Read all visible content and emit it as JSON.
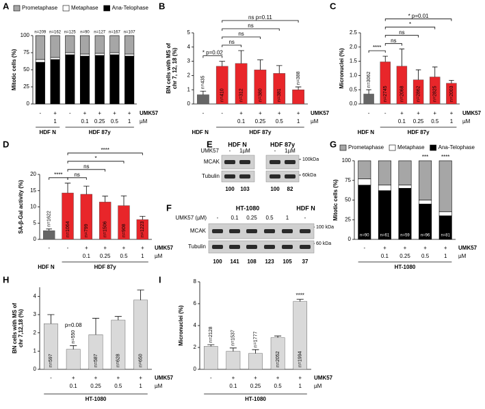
{
  "chart_data": [
    {
      "panel": "A",
      "type": "stacked_bar",
      "ylabel": [
        "Mitotic cells (%)"
      ],
      "ylim": [
        0,
        100
      ],
      "yticks": [
        0,
        25,
        50,
        75,
        100
      ],
      "series": [
        {
          "name": "Ana-Telophase",
          "color": "#000000",
          "values": [
            61,
            65,
            72,
            70,
            71,
            72,
            70
          ]
        },
        {
          "name": "Metaphase",
          "color": "#ffffff",
          "values": [
            4,
            3,
            3,
            3,
            3,
            3,
            3
          ]
        },
        {
          "name": "Prometaphase",
          "color": "#a6a6a6",
          "values": [
            35,
            32,
            25,
            27,
            26,
            25,
            27
          ]
        }
      ],
      "n_labels": [
        "n=209",
        "n=162",
        "n=125",
        "n=90",
        "n=127",
        "n=167",
        "n=107"
      ],
      "treatment": {
        "name": "UMK57",
        "unit": "µM",
        "signs": [
          "-",
          "+",
          "-",
          "+",
          "+",
          "+",
          "+"
        ],
        "doses": [
          null,
          "1",
          null,
          "0.1",
          "0.25",
          "0.5",
          "1"
        ]
      },
      "groups": [
        "HDF N",
        "HDF 87y"
      ]
    },
    {
      "panel": "B",
      "type": "bar",
      "ylabel": [
        "BN cells with MS of",
        "chr 7, 12, 18 (%)"
      ],
      "ylim": [
        0,
        5
      ],
      "yticks": [
        0,
        1,
        2,
        3,
        4,
        5
      ],
      "series": [
        {
          "colors": [
            "#666666",
            "#e8262a",
            "#e8262a",
            "#e8262a",
            "#e8262a",
            "#e8262a"
          ],
          "values": [
            0.65,
            2.65,
            2.85,
            2.4,
            2.15,
            1.0
          ],
          "errors": [
            0.25,
            0.35,
            0.9,
            0.7,
            0.55,
            0.2
          ]
        }
      ],
      "n_labels": [
        "n=435",
        "n=410",
        "n=312",
        "n=380",
        "n=381",
        "n=388"
      ],
      "comparisons": [
        {
          "bars": [
            0,
            1
          ],
          "label": "* p=0.02"
        },
        {
          "bars": [
            1,
            2
          ],
          "label": "ns"
        },
        {
          "bars": [
            1,
            3
          ],
          "label": "ns"
        },
        {
          "bars": [
            1,
            4
          ],
          "label": "ns"
        },
        {
          "bars": [
            1,
            5
          ],
          "label": "ns p=0.11"
        }
      ],
      "treatment": {
        "name": "UMK57",
        "unit": "µM",
        "signs": [
          "-",
          "-",
          "+",
          "+",
          "+",
          "+"
        ],
        "doses": [
          null,
          null,
          "0.1",
          "0.25",
          "0.5",
          "1"
        ]
      },
      "groups": [
        "HDF N",
        "HDF 87y"
      ]
    },
    {
      "panel": "C",
      "type": "bar",
      "ylabel": [
        "Micronuclei (%)"
      ],
      "ylim": [
        0,
        2.5
      ],
      "yticks": [
        {
          "value": 0,
          "label": "0.0"
        },
        {
          "value": 0.5,
          "label": "0.5"
        },
        {
          "value": 1,
          "label": "1.0"
        },
        {
          "value": 1.5,
          "label": "1.5"
        },
        {
          "value": 2,
          "label": "2.0"
        },
        {
          "value": 2.5,
          "label": "2.5"
        }
      ],
      "series": [
        {
          "colors": [
            "#666666",
            "#e8262a",
            "#e8262a",
            "#e8262a",
            "#e8262a",
            "#e8262a"
          ],
          "values": [
            0.35,
            1.48,
            1.33,
            0.85,
            0.95,
            0.73
          ],
          "errors": [
            0.15,
            0.2,
            0.6,
            0.35,
            0.35,
            0.1
          ]
        }
      ],
      "n_labels": [
        "n=3062",
        "n=2745",
        "n=2068",
        "n=2862",
        "n=2825",
        "n=2003"
      ],
      "comparisons": [
        {
          "bars": [
            0,
            1
          ],
          "label": "****"
        },
        {
          "bars": [
            1,
            2
          ],
          "label": "ns"
        },
        {
          "bars": [
            1,
            3
          ],
          "label": "ns"
        },
        {
          "bars": [
            1,
            4
          ],
          "label": "*"
        },
        {
          "bars": [
            1,
            5
          ],
          "label": "* p=0.01"
        }
      ],
      "treatment": {
        "name": "UMK57",
        "unit": "µM",
        "signs": [
          "-",
          "-",
          "+",
          "+",
          "+",
          "+"
        ],
        "doses": [
          null,
          null,
          "0.1",
          "0.25",
          "0.5",
          "1"
        ]
      },
      "groups": [
        "HDF N",
        "HDF 87y"
      ]
    },
    {
      "panel": "D",
      "type": "bar",
      "ylabel": [
        "SA-β-Gal activity (%)"
      ],
      "ylim": [
        0,
        20
      ],
      "yticks": [
        0,
        5,
        10,
        15,
        20
      ],
      "series": [
        {
          "colors": [
            "#666666",
            "#e8262a",
            "#e8262a",
            "#e8262a",
            "#e8262a",
            "#e8262a"
          ],
          "values": [
            2.7,
            14.3,
            13.9,
            11.5,
            10.4,
            6.1
          ],
          "errors": [
            0.5,
            3,
            2.5,
            1.8,
            3,
            1
          ]
        }
      ],
      "n_labels": [
        "n=1622",
        "n=1064",
        "n=799",
        "n=1506",
        "n=908",
        "n=1223"
      ],
      "comparisons": [
        {
          "bars": [
            0,
            1
          ],
          "label": "****"
        },
        {
          "bars": [
            1,
            2
          ],
          "label": "ns"
        },
        {
          "bars": [
            1,
            3
          ],
          "label": "ns"
        },
        {
          "bars": [
            1,
            4
          ],
          "label": "*"
        },
        {
          "bars": [
            1,
            5
          ],
          "label": "****"
        }
      ],
      "treatment": {
        "name": "UMK57",
        "unit": "µM",
        "signs": [
          "-",
          "-",
          "+",
          "+",
          "+",
          "+"
        ],
        "doses": [
          null,
          null,
          "0.1",
          "0.25",
          "0.5",
          "1"
        ]
      },
      "groups": [
        "HDF N",
        "HDF 87y"
      ]
    },
    {
      "panel": "G",
      "type": "stacked_bar",
      "ylabel": [
        "Mitotic cells (%)"
      ],
      "ylim": [
        0,
        100
      ],
      "yticks": [
        0,
        25,
        50,
        75,
        100
      ],
      "series": [
        {
          "name": "Ana-Telophase",
          "color": "#000000",
          "values": [
            69,
            62,
            65,
            45,
            30
          ]
        },
        {
          "name": "Metaphase",
          "color": "#ffffff",
          "values": [
            8,
            7,
            4,
            5,
            5
          ]
        },
        {
          "name": "Prometaphase",
          "color": "#a6a6a6",
          "values": [
            23,
            31,
            31,
            50,
            65
          ]
        }
      ],
      "n_labels": [
        "n=90",
        "n=61",
        "n=59",
        "n=96",
        "n=81"
      ],
      "annotations": [
        {
          "bar": 3,
          "label": "***"
        },
        {
          "bar": 4,
          "label": "****"
        }
      ],
      "treatment": {
        "name": "UMK57",
        "unit": "µM",
        "signs": [
          "-",
          "+",
          "+",
          "+",
          "+"
        ],
        "doses": [
          null,
          "0.1",
          "0.25",
          "0.5",
          "1"
        ]
      },
      "groups": [
        "HT-1080"
      ]
    },
    {
      "panel": "H",
      "type": "bar",
      "ylabel": [
        "BN cells with MS of",
        "chr 7,12,18 (%)"
      ],
      "ylim": [
        0,
        4.5
      ],
      "yticks": [
        0,
        1,
        2,
        3,
        4
      ],
      "series": [
        {
          "colors": [
            "#d9d9d9",
            "#d9d9d9",
            "#d9d9d9",
            "#d9d9d9",
            "#d9d9d9"
          ],
          "values": [
            2.5,
            1.1,
            1.9,
            2.7,
            3.8
          ],
          "errors": [
            0.5,
            0.2,
            0.9,
            0.2,
            0.55
          ]
        }
      ],
      "n_labels": [
        "n=597",
        "n=550",
        "n=587",
        "n=628",
        "n=650"
      ],
      "annotations": [
        {
          "bar": 1,
          "label": "p=0.08"
        }
      ],
      "treatment": {
        "name": "UMK57",
        "unit": "µM",
        "signs": [
          "-",
          "+",
          "+",
          "+",
          "+"
        ],
        "doses": [
          null,
          "0.1",
          "0.25",
          "0.5",
          "1"
        ]
      },
      "groups": [
        "HT-1080"
      ]
    },
    {
      "panel": "I",
      "type": "bar",
      "ylabel": [
        "Micronuclei (%)"
      ],
      "ylim": [
        0,
        8
      ],
      "yticks": [
        0,
        2,
        4,
        6,
        8
      ],
      "series": [
        {
          "colors": [
            "#d9d9d9",
            "#d9d9d9",
            "#d9d9d9",
            "#d9d9d9",
            "#d9d9d9"
          ],
          "values": [
            2.1,
            1.65,
            1.45,
            2.9,
            6.2
          ],
          "errors": [
            0.15,
            0.3,
            0.35,
            0.15,
            0.2
          ]
        }
      ],
      "n_labels": [
        "n=2128",
        "n=1537",
        "n=1777",
        "n=2052",
        "n=1994"
      ],
      "annotations": [
        {
          "bar": 4,
          "label": "****"
        }
      ],
      "treatment": {
        "name": "UMK57",
        "unit": "µM",
        "signs": [
          "-",
          "+",
          "+",
          "+",
          "+"
        ],
        "doses": [
          null,
          "0.1",
          "0.25",
          "0.5",
          "1"
        ]
      },
      "groups": [
        "HT-1080"
      ]
    }
  ],
  "blots": [
    {
      "panel": "E",
      "groups": [
        "HDF N",
        "HDF 87y"
      ],
      "treatment": "UMK57",
      "lanes": [
        "-",
        "1µM",
        "-",
        "1µM"
      ],
      "proteins": [
        "MCAK",
        "Tubulin"
      ],
      "markers": [
        "100kDa",
        "60kDa"
      ],
      "quantification": [
        100,
        103,
        100,
        82
      ]
    },
    {
      "panel": "F",
      "groups": [
        "HT-1080",
        "HDF N"
      ],
      "treatment": "UMK57 (µM)",
      "lanes": [
        "-",
        "0.1",
        "0.25",
        "0.5",
        "1",
        "-"
      ],
      "proteins": [
        "MCAK",
        "Tubulin"
      ],
      "markers": [
        "100 kDa",
        "60 kDa"
      ],
      "quantification": [
        100,
        141,
        108,
        123,
        105,
        37
      ]
    }
  ]
}
